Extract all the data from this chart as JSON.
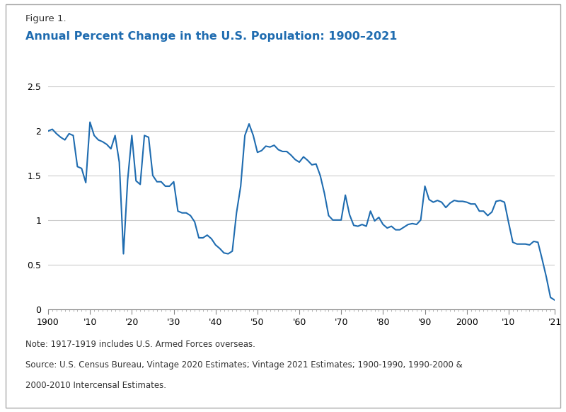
{
  "title_label": "Figure 1.",
  "title_main": "Annual Percent Change in the U.S. Population: 1900–2021",
  "title_color": "#1F6CB0",
  "note_line1": "Note: 1917-1919 includes U.S. Armed Forces overseas.",
  "note_line2": "Source: U.S. Census Bureau, Vintage 2020 Estimates; Vintage 2021 Estimates; 1900-1990, 1990-2000 &",
  "note_line3": "2000-2010 Intercensal Estimates.",
  "line_color": "#1F6CB0",
  "background_color": "#FFFFFF",
  "border_color": "#AAAAAA",
  "ylim": [
    0,
    2.5
  ],
  "yticks": [
    0,
    0.5,
    1.0,
    1.5,
    2.0,
    2.5
  ],
  "xtick_positions": [
    1900,
    1910,
    1920,
    1930,
    1940,
    1950,
    1960,
    1970,
    1980,
    1990,
    2000,
    2010,
    2021
  ],
  "xtick_labels": [
    "1900",
    "'10",
    "'20",
    "'30",
    "'40",
    "'50",
    "'60",
    "'70",
    "'80",
    "'90",
    "2000",
    "'10",
    "'21"
  ],
  "years": [
    1900,
    1901,
    1902,
    1903,
    1904,
    1905,
    1906,
    1907,
    1908,
    1909,
    1910,
    1911,
    1912,
    1913,
    1914,
    1915,
    1916,
    1917,
    1918,
    1919,
    1920,
    1921,
    1922,
    1923,
    1924,
    1925,
    1926,
    1927,
    1928,
    1929,
    1930,
    1931,
    1932,
    1933,
    1934,
    1935,
    1936,
    1937,
    1938,
    1939,
    1940,
    1941,
    1942,
    1943,
    1944,
    1945,
    1946,
    1947,
    1948,
    1949,
    1950,
    1951,
    1952,
    1953,
    1954,
    1955,
    1956,
    1957,
    1958,
    1959,
    1960,
    1961,
    1962,
    1963,
    1964,
    1965,
    1966,
    1967,
    1968,
    1969,
    1970,
    1971,
    1972,
    1973,
    1974,
    1975,
    1976,
    1977,
    1978,
    1979,
    1980,
    1981,
    1982,
    1983,
    1984,
    1985,
    1986,
    1987,
    1988,
    1989,
    1990,
    1991,
    1992,
    1993,
    1994,
    1995,
    1996,
    1997,
    1998,
    1999,
    2000,
    2001,
    2002,
    2003,
    2004,
    2005,
    2006,
    2007,
    2008,
    2009,
    2010,
    2011,
    2012,
    2013,
    2014,
    2015,
    2016,
    2017,
    2018,
    2019,
    2020,
    2021
  ],
  "values": [
    2.0,
    2.02,
    1.97,
    1.93,
    1.9,
    1.97,
    1.95,
    1.6,
    1.58,
    1.42,
    2.1,
    1.95,
    1.9,
    1.88,
    1.85,
    1.8,
    1.95,
    1.65,
    0.62,
    1.45,
    1.95,
    1.44,
    1.4,
    1.95,
    1.93,
    1.5,
    1.43,
    1.43,
    1.38,
    1.38,
    1.43,
    1.1,
    1.08,
    1.08,
    1.05,
    0.98,
    0.8,
    0.8,
    0.83,
    0.79,
    0.72,
    0.68,
    0.63,
    0.62,
    0.65,
    1.08,
    1.38,
    1.95,
    2.08,
    1.95,
    1.76,
    1.78,
    1.83,
    1.82,
    1.84,
    1.79,
    1.77,
    1.77,
    1.73,
    1.68,
    1.65,
    1.71,
    1.67,
    1.62,
    1.63,
    1.5,
    1.3,
    1.05,
    1.0,
    1.0,
    1.0,
    1.28,
    1.06,
    0.94,
    0.93,
    0.95,
    0.93,
    1.1,
    0.99,
    1.03,
    0.95,
    0.91,
    0.93,
    0.89,
    0.89,
    0.92,
    0.95,
    0.96,
    0.95,
    1.0,
    1.38,
    1.23,
    1.2,
    1.22,
    1.2,
    1.14,
    1.19,
    1.22,
    1.21,
    1.21,
    1.2,
    1.18,
    1.18,
    1.1,
    1.1,
    1.05,
    1.09,
    1.21,
    1.22,
    1.2,
    0.97,
    0.75,
    0.73,
    0.73,
    0.73,
    0.72,
    0.76,
    0.75,
    0.56,
    0.36,
    0.13,
    0.1
  ]
}
